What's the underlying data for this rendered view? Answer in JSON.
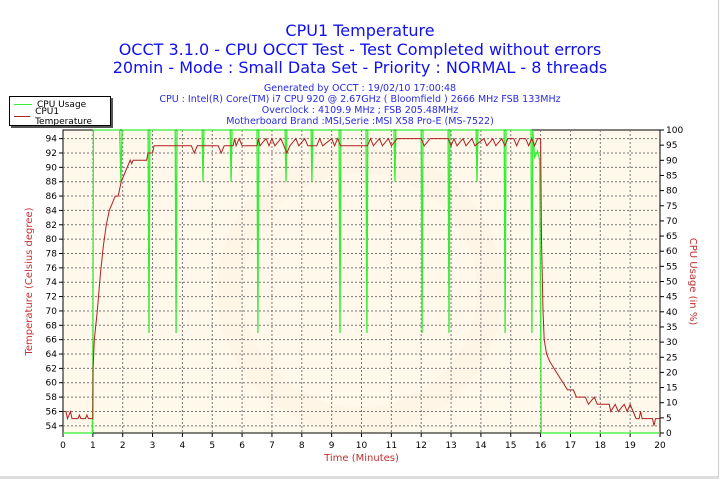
{
  "chart_data": {
    "type": "line",
    "title": "CPU1 Temperature",
    "subtitle_lines": [
      "OCCT 3.1.0 - CPU OCCT Test - Test Completed without errors",
      "20min - Mode : Small Data Set - Priority : NORMAL - 8 threads"
    ],
    "info_lines": [
      "Generated by OCCT : 19/02/10 17:00:48",
      "CPU : Intel(R) Core(TM) i7 CPU 920 @ 2.67GHz ( Bloomfield ) 2666 MHz FSB 133MHz",
      "Overclock : 4109.9 MHz ; FSB 205.48MHz",
      "Motherboard Brand :MSI,Serie :MSI X58 Pro-E (MS-7522)"
    ],
    "xlabel": "Time (Minutes)",
    "ylabel": "Temperature (Celsius degree)",
    "y2label": "CPU Usage (in %)",
    "xlim": [
      0,
      20
    ],
    "ylim": [
      53,
      95.2
    ],
    "y2lim": [
      0,
      100
    ],
    "xticks": [
      "0",
      "1",
      "2",
      "3",
      "4",
      "5",
      "6",
      "7",
      "8",
      "9",
      "10",
      "11",
      "12",
      "13",
      "14",
      "15",
      "16",
      "17",
      "18",
      "19",
      "20"
    ],
    "yticks": [
      "54",
      "56",
      "58",
      "60",
      "62",
      "64",
      "66",
      "68",
      "70",
      "72",
      "74",
      "76",
      "78",
      "80",
      "82",
      "84",
      "86",
      "88",
      "90",
      "92",
      "94"
    ],
    "y2ticks": [
      "0",
      "5",
      "10",
      "15",
      "20",
      "25",
      "30",
      "35",
      "40",
      "45",
      "50",
      "55",
      "60",
      "65",
      "70",
      "75",
      "80",
      "85",
      "90",
      "95",
      "100"
    ],
    "grid": true,
    "legend_position": "top-left",
    "series": [
      {
        "name": "CPU Usage",
        "axis": "right",
        "color": "#33ee33",
        "points": [
          [
            0,
            0
          ],
          [
            0.98,
            0
          ],
          [
            1.0,
            10
          ],
          [
            1.02,
            100
          ],
          [
            1.9,
            100
          ],
          [
            1.94,
            83
          ],
          [
            1.98,
            100
          ],
          [
            2.85,
            100
          ],
          [
            2.88,
            33
          ],
          [
            2.91,
            100
          ],
          [
            3.76,
            100
          ],
          [
            3.79,
            33
          ],
          [
            3.82,
            100
          ],
          [
            4.66,
            100
          ],
          [
            4.69,
            83
          ],
          [
            4.72,
            100
          ],
          [
            5.6,
            100
          ],
          [
            5.63,
            83
          ],
          [
            5.66,
            100
          ],
          [
            6.5,
            100
          ],
          [
            6.53,
            33
          ],
          [
            6.56,
            100
          ],
          [
            7.44,
            100
          ],
          [
            7.47,
            83
          ],
          [
            7.5,
            100
          ],
          [
            8.31,
            100
          ],
          [
            8.34,
            83
          ],
          [
            8.37,
            100
          ],
          [
            9.25,
            100
          ],
          [
            9.28,
            33
          ],
          [
            9.31,
            100
          ],
          [
            10.15,
            100
          ],
          [
            10.18,
            33
          ],
          [
            10.21,
            100
          ],
          [
            11.09,
            100
          ],
          [
            11.12,
            83
          ],
          [
            11.15,
            100
          ],
          [
            12.0,
            100
          ],
          [
            12.03,
            33
          ],
          [
            12.06,
            100
          ],
          [
            12.9,
            100
          ],
          [
            12.93,
            33
          ],
          [
            12.96,
            100
          ],
          [
            13.84,
            100
          ],
          [
            13.87,
            83
          ],
          [
            13.9,
            100
          ],
          [
            14.78,
            100
          ],
          [
            14.81,
            33
          ],
          [
            14.84,
            100
          ],
          [
            15.68,
            100
          ],
          [
            15.71,
            33
          ],
          [
            15.74,
            100
          ],
          [
            15.8,
            91
          ],
          [
            15.9,
            93
          ],
          [
            15.97,
            90
          ],
          [
            16.0,
            40
          ],
          [
            16.02,
            0
          ],
          [
            20,
            0
          ]
        ]
      },
      {
        "name": "CPU1 Temperature",
        "axis": "left",
        "color": "#b02020",
        "points": [
          [
            0,
            56
          ],
          [
            0.1,
            56
          ],
          [
            0.15,
            55
          ],
          [
            0.25,
            56
          ],
          [
            0.3,
            55
          ],
          [
            0.5,
            55
          ],
          [
            0.55,
            55.5
          ],
          [
            0.6,
            55
          ],
          [
            0.75,
            55
          ],
          [
            0.8,
            55.5
          ],
          [
            0.85,
            55
          ],
          [
            1.0,
            55
          ],
          [
            1.01,
            62
          ],
          [
            1.05,
            66
          ],
          [
            1.15,
            70
          ],
          [
            1.25,
            75
          ],
          [
            1.35,
            79
          ],
          [
            1.45,
            82
          ],
          [
            1.55,
            84
          ],
          [
            1.65,
            85
          ],
          [
            1.75,
            86
          ],
          [
            1.85,
            86
          ],
          [
            1.95,
            88
          ],
          [
            2.05,
            89
          ],
          [
            2.15,
            90
          ],
          [
            2.25,
            91
          ],
          [
            2.3,
            90.5
          ],
          [
            2.35,
            91
          ],
          [
            2.4,
            91
          ],
          [
            2.8,
            91
          ],
          [
            2.85,
            92
          ],
          [
            3.0,
            92
          ],
          [
            3.05,
            93
          ],
          [
            4.3,
            93
          ],
          [
            4.4,
            92
          ],
          [
            4.5,
            93
          ],
          [
            5.2,
            93
          ],
          [
            5.3,
            92
          ],
          [
            5.4,
            93
          ],
          [
            5.7,
            93
          ],
          [
            5.75,
            94
          ],
          [
            5.8,
            93
          ],
          [
            5.9,
            94
          ],
          [
            6.0,
            93
          ],
          [
            6.5,
            93
          ],
          [
            6.55,
            94
          ],
          [
            6.6,
            93
          ],
          [
            6.8,
            94
          ],
          [
            6.9,
            93
          ],
          [
            7.0,
            94
          ],
          [
            7.1,
            93
          ],
          [
            7.3,
            94
          ],
          [
            7.4,
            93
          ],
          [
            7.5,
            92
          ],
          [
            7.6,
            93
          ],
          [
            7.8,
            94
          ],
          [
            7.9,
            93
          ],
          [
            8.1,
            94
          ],
          [
            8.2,
            93
          ],
          [
            8.5,
            93
          ],
          [
            8.6,
            94
          ],
          [
            8.7,
            93
          ],
          [
            9.0,
            94
          ],
          [
            9.1,
            93
          ],
          [
            9.2,
            94
          ],
          [
            9.3,
            93
          ],
          [
            10.2,
            93
          ],
          [
            10.3,
            94
          ],
          [
            10.4,
            93
          ],
          [
            10.6,
            94
          ],
          [
            10.7,
            93
          ],
          [
            10.9,
            94
          ],
          [
            11.0,
            93
          ],
          [
            11.2,
            94
          ],
          [
            12.0,
            94
          ],
          [
            12.1,
            93
          ],
          [
            12.3,
            94
          ],
          [
            12.9,
            94
          ],
          [
            13.0,
            93
          ],
          [
            13.1,
            94
          ],
          [
            13.2,
            93
          ],
          [
            13.4,
            94
          ],
          [
            13.5,
            93
          ],
          [
            13.7,
            94
          ],
          [
            13.8,
            93
          ],
          [
            14.1,
            94
          ],
          [
            14.2,
            93
          ],
          [
            14.4,
            94
          ],
          [
            14.5,
            93
          ],
          [
            14.7,
            94
          ],
          [
            14.8,
            93
          ],
          [
            14.9,
            94
          ],
          [
            15.1,
            94
          ],
          [
            15.2,
            93
          ],
          [
            15.3,
            94
          ],
          [
            15.5,
            94
          ],
          [
            15.6,
            93
          ],
          [
            15.7,
            94
          ],
          [
            15.8,
            93
          ],
          [
            15.9,
            94
          ],
          [
            16.0,
            94
          ],
          [
            16.03,
            80
          ],
          [
            16.08,
            70
          ],
          [
            16.12,
            66
          ],
          [
            16.2,
            64
          ],
          [
            16.3,
            63
          ],
          [
            16.45,
            62
          ],
          [
            16.6,
            61
          ],
          [
            16.75,
            60
          ],
          [
            16.9,
            59
          ],
          [
            17.1,
            59
          ],
          [
            17.2,
            58
          ],
          [
            17.5,
            58
          ],
          [
            17.6,
            57
          ],
          [
            17.8,
            58
          ],
          [
            17.9,
            57
          ],
          [
            18.3,
            57
          ],
          [
            18.35,
            56
          ],
          [
            18.5,
            57
          ],
          [
            18.6,
            56
          ],
          [
            18.8,
            57
          ],
          [
            18.9,
            56
          ],
          [
            19.0,
            57
          ],
          [
            19.1,
            56
          ],
          [
            19.2,
            55
          ],
          [
            19.3,
            55
          ],
          [
            19.35,
            56
          ],
          [
            19.4,
            55
          ],
          [
            19.75,
            55
          ],
          [
            19.8,
            54
          ],
          [
            19.85,
            55
          ],
          [
            20,
            55
          ]
        ]
      }
    ]
  }
}
